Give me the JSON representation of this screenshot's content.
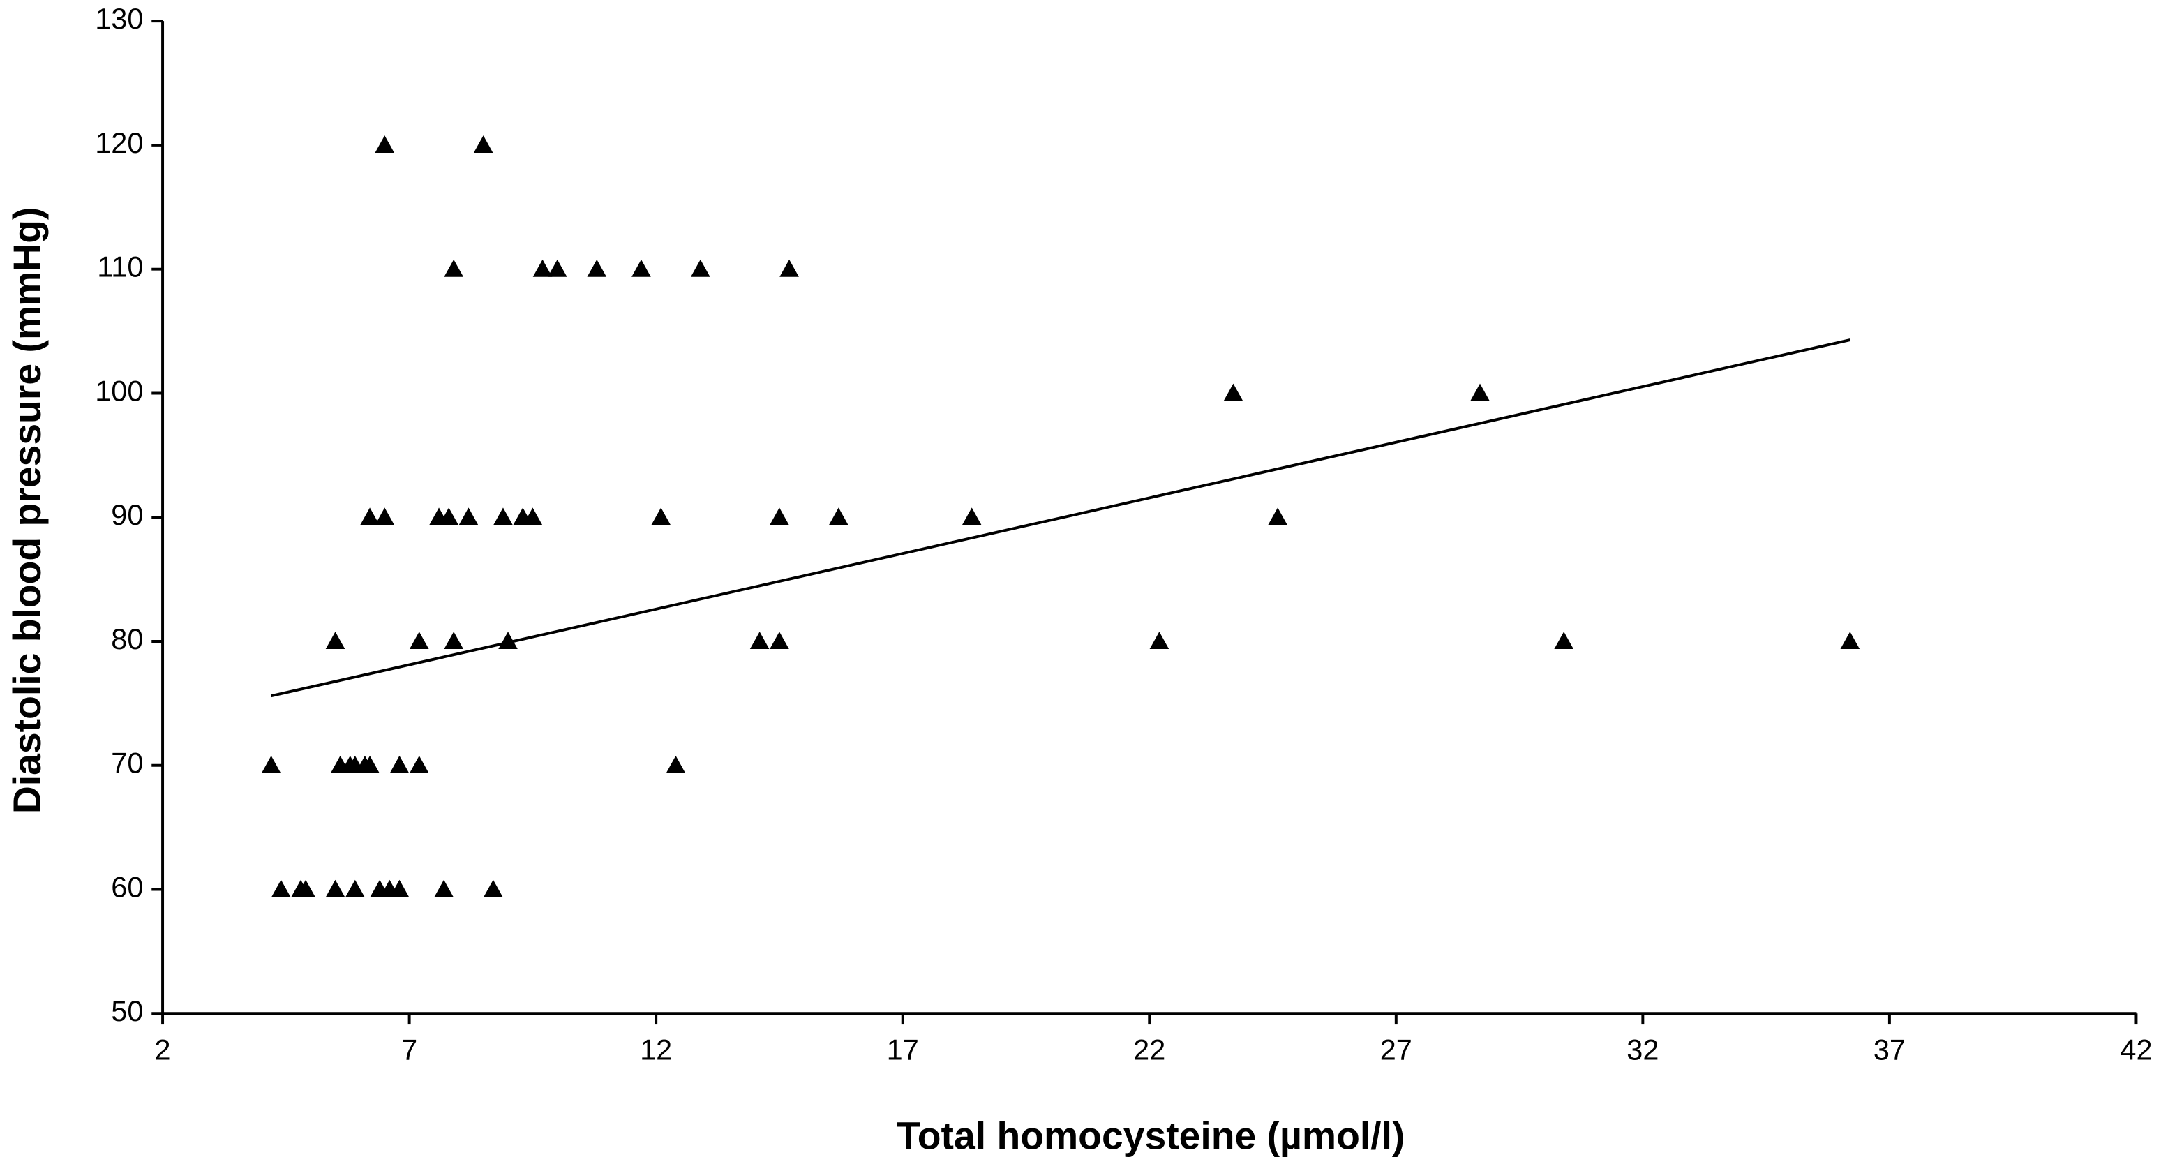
{
  "chart_data": {
    "type": "scatter",
    "x_label": "Total homocysteine (µmol/l)",
    "y_label": "Diastolic blood pressure (mmHg)",
    "x": [
      6.5,
      8.5,
      7.9,
      9.7,
      10.0,
      10.8,
      11.7,
      12.9,
      14.7,
      23.7,
      28.7,
      6.2,
      6.5,
      7.6,
      7.8,
      8.2,
      8.9,
      9.3,
      9.5,
      12.1,
      14.5,
      15.7,
      18.4,
      24.6,
      5.5,
      7.2,
      7.9,
      9.0,
      14.1,
      14.5,
      22.2,
      30.4,
      36.2,
      4.2,
      5.6,
      5.8,
      5.9,
      6.1,
      6.2,
      6.8,
      7.2,
      12.4,
      4.4,
      4.8,
      4.9,
      5.5,
      5.9,
      6.4,
      6.6,
      6.8,
      7.7,
      8.7
    ],
    "values": [
      120,
      120,
      110,
      110,
      110,
      110,
      110,
      110,
      110,
      100,
      100,
      90,
      90,
      90,
      90,
      90,
      90,
      90,
      90,
      90,
      90,
      90,
      90,
      90,
      80,
      80,
      80,
      80,
      80,
      80,
      80,
      80,
      80,
      70,
      70,
      70,
      70,
      70,
      70,
      70,
      70,
      70,
      60,
      60,
      60,
      60,
      60,
      60,
      60,
      60,
      60,
      60
    ],
    "color": "#000000",
    "trendline": {
      "x": [
        4.2,
        36.2
      ],
      "values": [
        75.6,
        104.3
      ],
      "color": "#000000"
    },
    "xlim": [
      2,
      42
    ],
    "xticks": [
      2,
      7,
      12,
      17,
      22,
      27,
      32,
      37,
      42
    ],
    "ylim": [
      50,
      130
    ],
    "yticks": [
      50,
      60,
      70,
      80,
      90,
      100,
      110,
      120,
      130
    ],
    "grid": false
  }
}
